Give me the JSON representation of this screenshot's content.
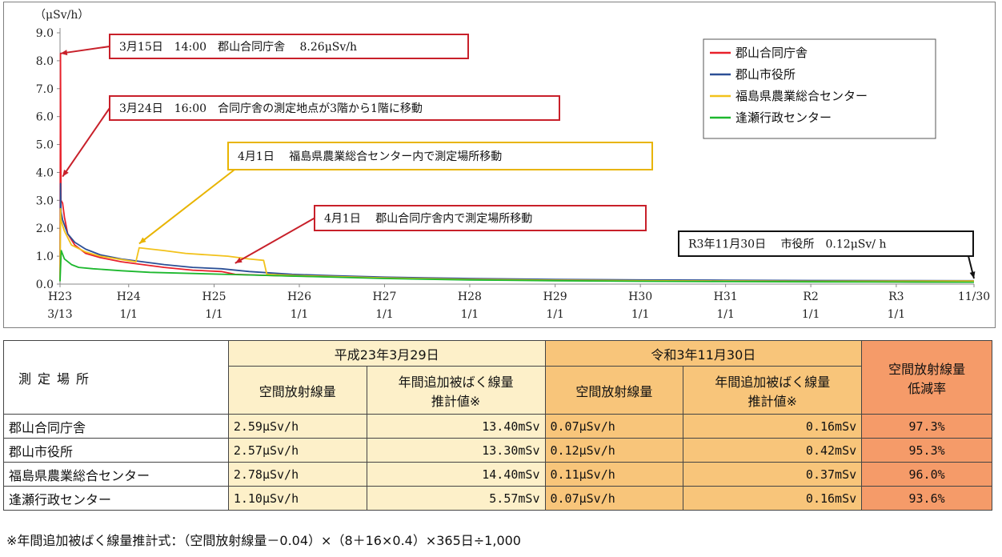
{
  "chart_data": {
    "type": "line",
    "unit_label": "（μSv/h）",
    "ylim": [
      0,
      9
    ],
    "y_ticks": [
      "0.0",
      "1.0",
      "2.0",
      "3.0",
      "4.0",
      "5.0",
      "6.0",
      "7.0",
      "8.0",
      "9.0"
    ],
    "x_ticks": [
      {
        "date": "2011-03-13",
        "line1": "H23",
        "line2": "3/13"
      },
      {
        "date": "2012-01-01",
        "line1": "H24",
        "line2": "1/1"
      },
      {
        "date": "2013-01-01",
        "line1": "H25",
        "line2": "1/1"
      },
      {
        "date": "2014-01-01",
        "line1": "H26",
        "line2": "1/1"
      },
      {
        "date": "2015-01-01",
        "line1": "H27",
        "line2": "1/1"
      },
      {
        "date": "2016-01-01",
        "line1": "H28",
        "line2": "1/1"
      },
      {
        "date": "2017-01-01",
        "line1": "H29",
        "line2": "1/1"
      },
      {
        "date": "2018-01-01",
        "line1": "H30",
        "line2": "1/1"
      },
      {
        "date": "2019-01-01",
        "line1": "H31",
        "line2": "1/1"
      },
      {
        "date": "2020-01-01",
        "line1": "R2",
        "line2": "1/1"
      },
      {
        "date": "2021-01-01",
        "line1": "R3",
        "line2": "1/1"
      },
      {
        "date": "2021-11-30",
        "line1": "11/30",
        "line2": ""
      }
    ],
    "grid": false,
    "legend_position": "top-right",
    "series": [
      {
        "name": "郡山合同庁舎",
        "color": "#e8202a",
        "points": [
          [
            "2011-03-13",
            0.1
          ],
          [
            "2011-03-15",
            8.26
          ],
          [
            "2011-03-17",
            3.0
          ],
          [
            "2011-03-24",
            2.9
          ],
          [
            "2011-04-01",
            2.4
          ],
          [
            "2011-04-15",
            1.8
          ],
          [
            "2011-05-15",
            1.4
          ],
          [
            "2011-07-01",
            1.1
          ],
          [
            "2011-09-01",
            0.95
          ],
          [
            "2011-12-01",
            0.8
          ],
          [
            "2012-03-01",
            0.7
          ],
          [
            "2012-06-01",
            0.6
          ],
          [
            "2012-10-01",
            0.5
          ],
          [
            "2013-02-01",
            0.45
          ],
          [
            "2013-04-01",
            0.35
          ],
          [
            "2013-10-01",
            0.3
          ],
          [
            "2014-04-01",
            0.27
          ],
          [
            "2015-01-01",
            0.22
          ],
          [
            "2016-01-01",
            0.17
          ],
          [
            "2017-01-01",
            0.14
          ],
          [
            "2018-01-01",
            0.12
          ],
          [
            "2019-01-01",
            0.1
          ],
          [
            "2020-01-01",
            0.09
          ],
          [
            "2021-01-01",
            0.08
          ],
          [
            "2021-11-30",
            0.07
          ]
        ]
      },
      {
        "name": "郡山市役所",
        "color": "#2c4f96",
        "points": [
          [
            "2011-03-13",
            0.1
          ],
          [
            "2011-03-15",
            3.6
          ],
          [
            "2011-03-17",
            2.6
          ],
          [
            "2011-03-24",
            2.3
          ],
          [
            "2011-04-15",
            1.8
          ],
          [
            "2011-05-15",
            1.5
          ],
          [
            "2011-07-01",
            1.25
          ],
          [
            "2011-09-01",
            1.05
          ],
          [
            "2011-12-01",
            0.9
          ],
          [
            "2012-03-01",
            0.8
          ],
          [
            "2012-06-01",
            0.7
          ],
          [
            "2012-10-01",
            0.6
          ],
          [
            "2013-02-01",
            0.55
          ],
          [
            "2013-06-01",
            0.45
          ],
          [
            "2013-12-01",
            0.35
          ],
          [
            "2014-06-01",
            0.3
          ],
          [
            "2015-01-01",
            0.25
          ],
          [
            "2016-01-01",
            0.2
          ],
          [
            "2017-01-01",
            0.17
          ],
          [
            "2018-01-01",
            0.15
          ],
          [
            "2019-01-01",
            0.14
          ],
          [
            "2020-01-01",
            0.13
          ],
          [
            "2021-01-01",
            0.125
          ],
          [
            "2021-11-30",
            0.12
          ]
        ]
      },
      {
        "name": "福島県農業総合センター",
        "color": "#f2c21b",
        "points": [
          [
            "2011-03-13",
            0.1
          ],
          [
            "2011-03-15",
            2.7
          ],
          [
            "2011-03-17",
            2.3
          ],
          [
            "2011-03-24",
            2.1
          ],
          [
            "2011-04-01",
            1.9
          ],
          [
            "2011-05-01",
            1.4
          ],
          [
            "2011-07-01",
            1.15
          ],
          [
            "2011-09-01",
            1.0
          ],
          [
            "2011-12-01",
            0.88
          ],
          [
            "2012-02-01",
            0.8
          ],
          [
            "2012-02-15",
            1.3
          ],
          [
            "2012-06-01",
            1.2
          ],
          [
            "2012-09-01",
            1.1
          ],
          [
            "2012-12-01",
            1.05
          ],
          [
            "2013-03-01",
            1.0
          ],
          [
            "2013-06-01",
            0.9
          ],
          [
            "2013-08-01",
            0.85
          ],
          [
            "2013-08-15",
            0.35
          ],
          [
            "2014-01-01",
            0.3
          ],
          [
            "2015-01-01",
            0.22
          ],
          [
            "2016-01-01",
            0.17
          ],
          [
            "2017-01-01",
            0.14
          ],
          [
            "2018-01-01",
            0.12
          ],
          [
            "2019-01-01",
            0.11
          ],
          [
            "2020-01-01",
            0.1
          ],
          [
            "2021-11-30",
            0.11
          ]
        ]
      },
      {
        "name": "逢瀬行政センター",
        "color": "#1db82e",
        "points": [
          [
            "2011-03-13",
            0.1
          ],
          [
            "2011-03-18",
            1.2
          ],
          [
            "2011-04-01",
            0.9
          ],
          [
            "2011-05-01",
            0.7
          ],
          [
            "2011-06-01",
            0.6
          ],
          [
            "2011-08-01",
            0.55
          ],
          [
            "2011-12-01",
            0.48
          ],
          [
            "2012-04-01",
            0.42
          ],
          [
            "2012-10-01",
            0.38
          ],
          [
            "2013-04-01",
            0.34
          ],
          [
            "2014-01-01",
            0.28
          ],
          [
            "2015-01-01",
            0.2
          ],
          [
            "2016-01-01",
            0.15
          ],
          [
            "2017-01-01",
            0.12
          ],
          [
            "2018-01-01",
            0.1
          ],
          [
            "2019-01-01",
            0.09
          ],
          [
            "2020-01-01",
            0.08
          ],
          [
            "2021-01-01",
            0.075
          ],
          [
            "2021-11-30",
            0.07
          ]
        ]
      }
    ],
    "annotations": [
      {
        "text": "3月15日　14:00　郡山合同庁舎　 8.26μSv/h",
        "color": "#c8202a",
        "target": [
          "2011-03-15",
          8.26
        ],
        "box_anchor": "box1"
      },
      {
        "text": "3月24日　16:00　合同庁舎の測定地点が3階から1階に移動",
        "color": "#c8202a",
        "target": [
          "2011-03-24",
          3.85
        ],
        "box_anchor": "box2"
      },
      {
        "text": "4月1日　 福島県農業総合センター内で測定場所移動",
        "color": "#e8b400",
        "target": [
          "2012-02-15",
          1.45
        ],
        "box_anchor": "box3"
      },
      {
        "text": "4月1日　 郡山合同庁舎内で測定場所移動",
        "color": "#c8202a",
        "target": [
          "2013-04-01",
          0.75
        ],
        "box_anchor": "box4"
      },
      {
        "text": "R3年11月30日　 市役所　0.12μSv/ h",
        "color": "#111111",
        "target": [
          "2021-11-30",
          0.2
        ],
        "box_anchor": "box5"
      }
    ]
  },
  "table": {
    "header_location": "測定場所",
    "group1": "平成23年3月29日",
    "group2": "令和3年11月30日",
    "col_rate_label": "空間放射線量\n低減率",
    "sub_air": "空間放射線量",
    "sub_annual": "年間追加被ばく線量\n推計値※",
    "rows": [
      {
        "location": "郡山合同庁舎",
        "air1": "2.59μSv/h",
        "annual1": "13.40mSv",
        "air2": "0.07μSv/h",
        "annual2": "0.16mSv",
        "rate": "97.3%"
      },
      {
        "location": "郡山市役所",
        "air1": "2.57μSv/h",
        "annual1": "13.30mSv",
        "air2": "0.12μSv/h",
        "annual2": "0.42mSv",
        "rate": "95.3%"
      },
      {
        "location": "福島県農業総合センター",
        "air1": "2.78μSv/h",
        "annual1": "14.40mSv",
        "air2": "0.11μSv/h",
        "annual2": "0.37mSv",
        "rate": "96.0%"
      },
      {
        "location": "逢瀬行政センター",
        "air1": "1.10μSv/h",
        "annual1": "5.57mSv",
        "air2": "0.07μSv/h",
        "annual2": "0.16mSv",
        "rate": "93.6%"
      }
    ]
  },
  "footnote": "※年間追加被ばく線量推計式：（空間放射線量－0.04）×（8＋16×0.4）×365日÷1,000"
}
